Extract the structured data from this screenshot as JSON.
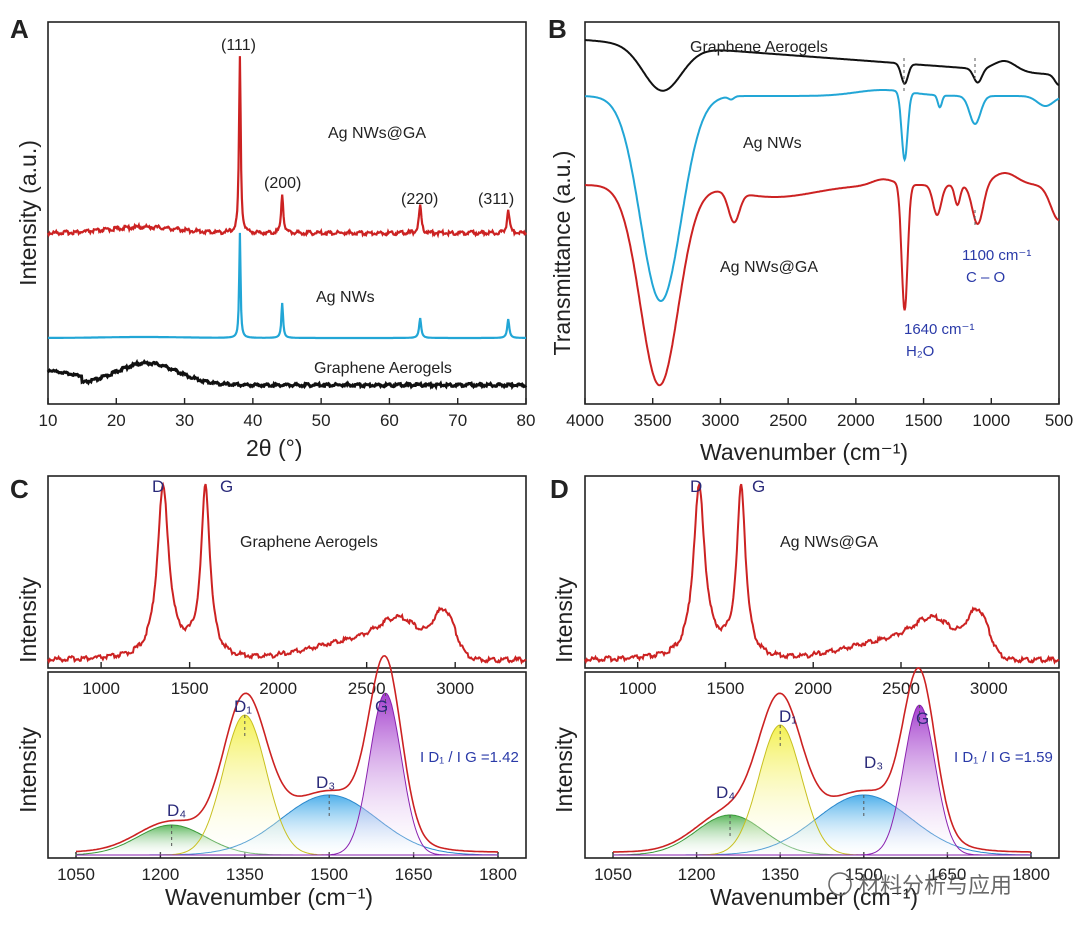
{
  "chart_data": [
    {
      "panel": "A",
      "type": "line",
      "xlabel": "2θ  (°)",
      "ylabel": "Intensity  (a.u.)",
      "xlim": [
        10,
        80
      ],
      "xticks": [
        "10",
        "20",
        "30",
        "40",
        "50",
        "60",
        "70",
        "80"
      ],
      "series": [
        {
          "name": "Ag NWs@GA",
          "color": "#cc2222",
          "peaks": [
            {
              "x": 38.1,
              "label": "(111)"
            },
            {
              "x": 44.3,
              "label": "(200)"
            },
            {
              "x": 64.5,
              "label": "(220)"
            },
            {
              "x": 77.4,
              "label": "(311)"
            }
          ]
        },
        {
          "name": "Ag NWs",
          "color": "#22a6d6",
          "peaks": [
            {
              "x": 38.1
            },
            {
              "x": 44.3
            },
            {
              "x": 64.5
            },
            {
              "x": 77.4
            }
          ]
        },
        {
          "name": "Graphene Aerogels",
          "color": "#111111",
          "broad_peak": 24.5
        }
      ]
    },
    {
      "panel": "B",
      "type": "line",
      "xlabel": "Wavenumber  (cm⁻¹)",
      "ylabel": "Transmittance  (a.u.)",
      "xlim": [
        4000,
        500
      ],
      "xticks": [
        "4000",
        "3500",
        "3000",
        "2500",
        "2000",
        "1500",
        "1000",
        "500"
      ],
      "series": [
        {
          "name": "Graphene Aerogels",
          "color": "#111111"
        },
        {
          "name": "Ag NWs",
          "color": "#22a6d6"
        },
        {
          "name": "Ag NWs@GA",
          "color": "#cc2222"
        }
      ],
      "annotations": [
        {
          "x": 1640,
          "text": "1640 cm⁻¹",
          "text2": "H₂O"
        },
        {
          "x": 1100,
          "text": "1100 cm⁻¹",
          "text2": "C – O"
        }
      ]
    },
    {
      "panel": "C",
      "type": "line",
      "title": "Graphene Aerogels",
      "ylabel": "Intensity",
      "top_xticks": [
        "1000",
        "1500",
        "2000",
        "2500",
        "3000"
      ],
      "top_peaks": [
        {
          "label": "D",
          "x": 1350
        },
        {
          "label": "G",
          "x": 1590
        }
      ],
      "xlabel": "Wavenumber  (cm⁻¹)",
      "xticks": [
        "1050",
        "1200",
        "1350",
        "1500",
        "1650",
        "1800"
      ],
      "fit_peaks": [
        {
          "label": "D₄",
          "center": 1220,
          "color": "#44aa44"
        },
        {
          "label": "D₁",
          "center": 1350,
          "color": "#dddd22"
        },
        {
          "label": "D₃",
          "center": 1500,
          "color": "#33a0e0"
        },
        {
          "label": "G",
          "center": 1590,
          "color": "#aa33cc"
        }
      ],
      "ratio_text": "I D₁ / I G =1.42",
      "ratio": 1.42
    },
    {
      "panel": "D",
      "type": "line",
      "title": "Ag NWs@GA",
      "ylabel": "Intensity",
      "top_xticks": [
        "1000",
        "1500",
        "2000",
        "2500",
        "3000"
      ],
      "top_peaks": [
        {
          "label": "D",
          "x": 1350
        },
        {
          "label": "G",
          "x": 1590
        }
      ],
      "xlabel": "Wavenumber  (cm⁻¹)",
      "xticks": [
        "1050",
        "1200",
        "1350",
        "1500",
        "1650",
        "1800"
      ],
      "fit_peaks": [
        {
          "label": "D₄",
          "center": 1260,
          "color": "#44aa44"
        },
        {
          "label": "D₁",
          "center": 1350,
          "color": "#dddd22"
        },
        {
          "label": "D₃",
          "center": 1500,
          "color": "#33a0e0"
        },
        {
          "label": "G",
          "center": 1600,
          "color": "#aa33cc"
        }
      ],
      "ratio_text": "I D₁ / I G =1.59",
      "ratio": 1.59
    }
  ],
  "labels": {
    "A": "A",
    "B": "B",
    "C": "C",
    "D": "D",
    "watermark": "材料分析与应用"
  }
}
